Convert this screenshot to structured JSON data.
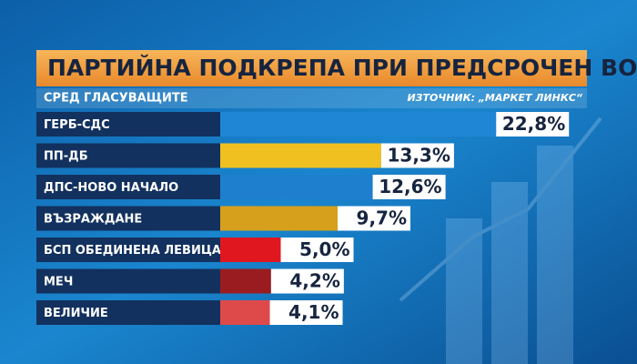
{
  "chart_data": {
    "type": "bar",
    "title": "ПАРТИЙНА ПОДКРЕПА ПРИ ПРЕДСРОЧЕН ВОТ",
    "subtitle": "СРЕД ГЛАСУВАЩИТЕ",
    "source": "ИЗТОЧНИК: „МАРКЕТ ЛИНКС“",
    "categories": [
      "ГЕРБ-СДС",
      "ПП-ДБ",
      "ДПС-НОВО НАЧАЛО",
      "ВЪЗРАЖДАНЕ",
      "БСП ОБЕДИНЕНА ЛЕВИЦА",
      "МЕЧ",
      "ВЕЛИЧИЕ"
    ],
    "values": [
      22.8,
      13.3,
      12.6,
      9.7,
      5.0,
      4.2,
      4.1
    ],
    "value_labels": [
      "22,8%",
      "13,3%",
      "12,6%",
      "9,7%",
      "5,0%",
      "4,2%",
      "4,1%"
    ],
    "colors": [
      "#1f86d6",
      "#f0c020",
      "#1f7fcf",
      "#d6a01c",
      "#e0171f",
      "#9a1c20",
      "#de4a4a"
    ]
  }
}
